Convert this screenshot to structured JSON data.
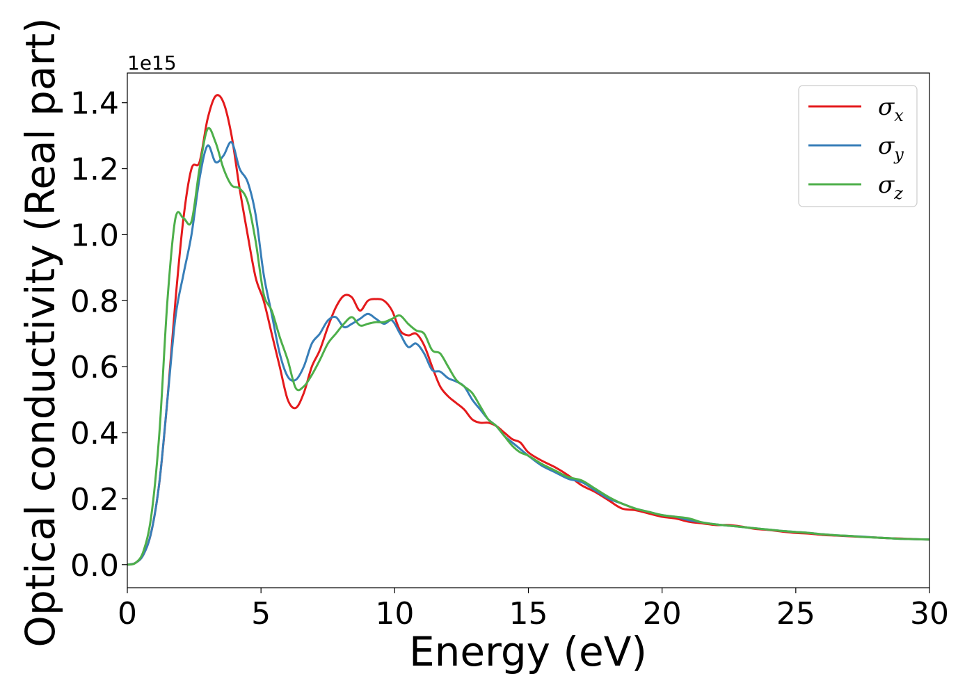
{
  "chart_data": {
    "type": "line",
    "xlabel": "Energy (eV)",
    "ylabel": "Optical conductivity (Real part)",
    "y_offset_text": "1e15",
    "y_scale": 1000000000000000.0,
    "xlim": [
      0,
      30
    ],
    "ylim": [
      -0.07,
      1.49
    ],
    "x_ticks": [
      {
        "value": 0,
        "label": "0"
      },
      {
        "value": 5,
        "label": "5"
      },
      {
        "value": 10,
        "label": "10"
      },
      {
        "value": 15,
        "label": "15"
      },
      {
        "value": 20,
        "label": "20"
      },
      {
        "value": 25,
        "label": "25"
      },
      {
        "value": 30,
        "label": "30"
      }
    ],
    "y_ticks": [
      {
        "value": 0.0,
        "label": "0.0"
      },
      {
        "value": 0.2,
        "label": "0.2"
      },
      {
        "value": 0.4,
        "label": "0.4"
      },
      {
        "value": 0.6,
        "label": "0.6"
      },
      {
        "value": 0.8,
        "label": "0.8"
      },
      {
        "value": 1.0,
        "label": "1.0"
      },
      {
        "value": 1.2,
        "label": "1.2"
      },
      {
        "value": 1.4,
        "label": "1.4"
      }
    ],
    "grid": false,
    "legend_position": "top-right",
    "series": [
      {
        "name": "σ",
        "subscript": "x",
        "color": "#e41a1c",
        "points": [
          [
            0,
            0
          ],
          [
            0.3,
            0.005
          ],
          [
            0.6,
            0.03
          ],
          [
            0.9,
            0.1
          ],
          [
            1.2,
            0.25
          ],
          [
            1.5,
            0.5
          ],
          [
            1.8,
            0.8
          ],
          [
            2.1,
            1.05
          ],
          [
            2.4,
            1.2
          ],
          [
            2.7,
            1.22
          ],
          [
            3.0,
            1.35
          ],
          [
            3.3,
            1.42
          ],
          [
            3.6,
            1.4
          ],
          [
            3.9,
            1.3
          ],
          [
            4.2,
            1.14
          ],
          [
            4.5,
            1.0
          ],
          [
            4.8,
            0.87
          ],
          [
            5.1,
            0.8
          ],
          [
            5.4,
            0.7
          ],
          [
            5.7,
            0.6
          ],
          [
            6.0,
            0.5
          ],
          [
            6.3,
            0.475
          ],
          [
            6.6,
            0.52
          ],
          [
            6.9,
            0.6
          ],
          [
            7.2,
            0.65
          ],
          [
            7.5,
            0.72
          ],
          [
            7.8,
            0.78
          ],
          [
            8.1,
            0.815
          ],
          [
            8.4,
            0.81
          ],
          [
            8.7,
            0.77
          ],
          [
            9.0,
            0.8
          ],
          [
            9.3,
            0.805
          ],
          [
            9.6,
            0.8
          ],
          [
            9.9,
            0.77
          ],
          [
            10.2,
            0.71
          ],
          [
            10.5,
            0.695
          ],
          [
            10.8,
            0.7
          ],
          [
            11.1,
            0.665
          ],
          [
            11.4,
            0.6
          ],
          [
            11.7,
            0.54
          ],
          [
            12.0,
            0.51
          ],
          [
            12.3,
            0.49
          ],
          [
            12.6,
            0.47
          ],
          [
            12.9,
            0.44
          ],
          [
            13.2,
            0.43
          ],
          [
            13.5,
            0.43
          ],
          [
            13.8,
            0.42
          ],
          [
            14.1,
            0.4
          ],
          [
            14.4,
            0.38
          ],
          [
            14.7,
            0.37
          ],
          [
            15.0,
            0.34
          ],
          [
            15.5,
            0.315
          ],
          [
            16.0,
            0.295
          ],
          [
            16.5,
            0.27
          ],
          [
            17.0,
            0.24
          ],
          [
            17.5,
            0.22
          ],
          [
            18.0,
            0.195
          ],
          [
            18.5,
            0.17
          ],
          [
            19.0,
            0.165
          ],
          [
            19.5,
            0.155
          ],
          [
            20.0,
            0.145
          ],
          [
            20.5,
            0.14
          ],
          [
            21.0,
            0.13
          ],
          [
            21.5,
            0.125
          ],
          [
            22.0,
            0.12
          ],
          [
            22.5,
            0.12
          ],
          [
            23.0,
            0.115
          ],
          [
            23.5,
            0.108
          ],
          [
            24.0,
            0.105
          ],
          [
            24.5,
            0.1
          ],
          [
            25.0,
            0.096
          ],
          [
            25.5,
            0.094
          ],
          [
            26.0,
            0.09
          ],
          [
            26.5,
            0.088
          ],
          [
            27.0,
            0.086
          ],
          [
            27.5,
            0.084
          ],
          [
            28.0,
            0.082
          ],
          [
            28.5,
            0.08
          ],
          [
            29.0,
            0.079
          ],
          [
            29.5,
            0.077
          ],
          [
            30.0,
            0.076
          ]
        ]
      },
      {
        "name": "σ",
        "subscript": "y",
        "color": "#377eb8",
        "points": [
          [
            0,
            0
          ],
          [
            0.3,
            0.005
          ],
          [
            0.6,
            0.03
          ],
          [
            0.9,
            0.1
          ],
          [
            1.2,
            0.25
          ],
          [
            1.5,
            0.5
          ],
          [
            1.8,
            0.75
          ],
          [
            2.1,
            0.88
          ],
          [
            2.4,
            1.0
          ],
          [
            2.7,
            1.17
          ],
          [
            3.0,
            1.27
          ],
          [
            3.3,
            1.22
          ],
          [
            3.6,
            1.24
          ],
          [
            3.9,
            1.28
          ],
          [
            4.2,
            1.2
          ],
          [
            4.5,
            1.16
          ],
          [
            4.8,
            1.06
          ],
          [
            5.1,
            0.88
          ],
          [
            5.4,
            0.76
          ],
          [
            5.7,
            0.64
          ],
          [
            6.0,
            0.57
          ],
          [
            6.3,
            0.56
          ],
          [
            6.6,
            0.6
          ],
          [
            6.9,
            0.67
          ],
          [
            7.2,
            0.7
          ],
          [
            7.5,
            0.74
          ],
          [
            7.8,
            0.75
          ],
          [
            8.1,
            0.72
          ],
          [
            8.4,
            0.73
          ],
          [
            8.7,
            0.745
          ],
          [
            9.0,
            0.76
          ],
          [
            9.3,
            0.745
          ],
          [
            9.6,
            0.73
          ],
          [
            9.9,
            0.74
          ],
          [
            10.2,
            0.7
          ],
          [
            10.5,
            0.66
          ],
          [
            10.8,
            0.67
          ],
          [
            11.1,
            0.64
          ],
          [
            11.4,
            0.59
          ],
          [
            11.7,
            0.585
          ],
          [
            12.0,
            0.565
          ],
          [
            12.3,
            0.555
          ],
          [
            12.6,
            0.54
          ],
          [
            12.9,
            0.5
          ],
          [
            13.2,
            0.47
          ],
          [
            13.5,
            0.44
          ],
          [
            13.8,
            0.42
          ],
          [
            14.1,
            0.39
          ],
          [
            14.4,
            0.37
          ],
          [
            14.7,
            0.35
          ],
          [
            15.0,
            0.33
          ],
          [
            15.5,
            0.3
          ],
          [
            16.0,
            0.28
          ],
          [
            16.5,
            0.26
          ],
          [
            17.0,
            0.25
          ],
          [
            17.5,
            0.225
          ],
          [
            18.0,
            0.2
          ],
          [
            18.5,
            0.185
          ],
          [
            19.0,
            0.17
          ],
          [
            19.5,
            0.16
          ],
          [
            20.0,
            0.15
          ],
          [
            20.5,
            0.145
          ],
          [
            21.0,
            0.135
          ],
          [
            21.5,
            0.128
          ],
          [
            22.0,
            0.122
          ],
          [
            22.5,
            0.118
          ],
          [
            23.0,
            0.114
          ],
          [
            23.5,
            0.11
          ],
          [
            24.0,
            0.106
          ],
          [
            24.5,
            0.102
          ],
          [
            25.0,
            0.099
          ],
          [
            25.5,
            0.096
          ],
          [
            26.0,
            0.092
          ],
          [
            26.5,
            0.089
          ],
          [
            27.0,
            0.087
          ],
          [
            27.5,
            0.085
          ],
          [
            28.0,
            0.082
          ],
          [
            28.5,
            0.08
          ],
          [
            29.0,
            0.078
          ],
          [
            29.5,
            0.077
          ],
          [
            30.0,
            0.076
          ]
        ]
      },
      {
        "name": "σ",
        "subscript": "z",
        "color": "#4daf4a",
        "points": [
          [
            0,
            0
          ],
          [
            0.3,
            0.005
          ],
          [
            0.6,
            0.04
          ],
          [
            0.9,
            0.15
          ],
          [
            1.2,
            0.4
          ],
          [
            1.5,
            0.8
          ],
          [
            1.8,
            1.05
          ],
          [
            2.1,
            1.05
          ],
          [
            2.4,
            1.04
          ],
          [
            2.7,
            1.2
          ],
          [
            3.0,
            1.32
          ],
          [
            3.3,
            1.28
          ],
          [
            3.6,
            1.2
          ],
          [
            3.9,
            1.15
          ],
          [
            4.2,
            1.14
          ],
          [
            4.5,
            1.1
          ],
          [
            4.8,
            0.98
          ],
          [
            5.1,
            0.82
          ],
          [
            5.4,
            0.77
          ],
          [
            5.7,
            0.69
          ],
          [
            6.0,
            0.62
          ],
          [
            6.3,
            0.535
          ],
          [
            6.6,
            0.54
          ],
          [
            6.9,
            0.575
          ],
          [
            7.2,
            0.62
          ],
          [
            7.5,
            0.67
          ],
          [
            7.8,
            0.7
          ],
          [
            8.1,
            0.73
          ],
          [
            8.4,
            0.75
          ],
          [
            8.7,
            0.725
          ],
          [
            9.0,
            0.73
          ],
          [
            9.3,
            0.735
          ],
          [
            9.6,
            0.735
          ],
          [
            9.9,
            0.745
          ],
          [
            10.2,
            0.755
          ],
          [
            10.5,
            0.73
          ],
          [
            10.8,
            0.71
          ],
          [
            11.1,
            0.7
          ],
          [
            11.4,
            0.65
          ],
          [
            11.7,
            0.64
          ],
          [
            12.0,
            0.6
          ],
          [
            12.3,
            0.56
          ],
          [
            12.6,
            0.54
          ],
          [
            12.9,
            0.52
          ],
          [
            13.2,
            0.48
          ],
          [
            13.5,
            0.44
          ],
          [
            13.8,
            0.42
          ],
          [
            14.1,
            0.39
          ],
          [
            14.4,
            0.36
          ],
          [
            14.7,
            0.34
          ],
          [
            15.0,
            0.33
          ],
          [
            15.5,
            0.305
          ],
          [
            16.0,
            0.285
          ],
          [
            16.5,
            0.265
          ],
          [
            17.0,
            0.255
          ],
          [
            17.5,
            0.23
          ],
          [
            18.0,
            0.205
          ],
          [
            18.5,
            0.185
          ],
          [
            19.0,
            0.17
          ],
          [
            19.5,
            0.16
          ],
          [
            20.0,
            0.15
          ],
          [
            20.5,
            0.145
          ],
          [
            21.0,
            0.14
          ],
          [
            21.5,
            0.128
          ],
          [
            22.0,
            0.122
          ],
          [
            22.5,
            0.118
          ],
          [
            23.0,
            0.114
          ],
          [
            23.5,
            0.11
          ],
          [
            24.0,
            0.106
          ],
          [
            24.5,
            0.102
          ],
          [
            25.0,
            0.099
          ],
          [
            25.5,
            0.096
          ],
          [
            26.0,
            0.092
          ],
          [
            26.5,
            0.089
          ],
          [
            27.0,
            0.087
          ],
          [
            27.5,
            0.084
          ],
          [
            28.0,
            0.082
          ],
          [
            28.5,
            0.08
          ],
          [
            29.0,
            0.078
          ],
          [
            29.5,
            0.077
          ],
          [
            30.0,
            0.076
          ]
        ]
      }
    ]
  }
}
